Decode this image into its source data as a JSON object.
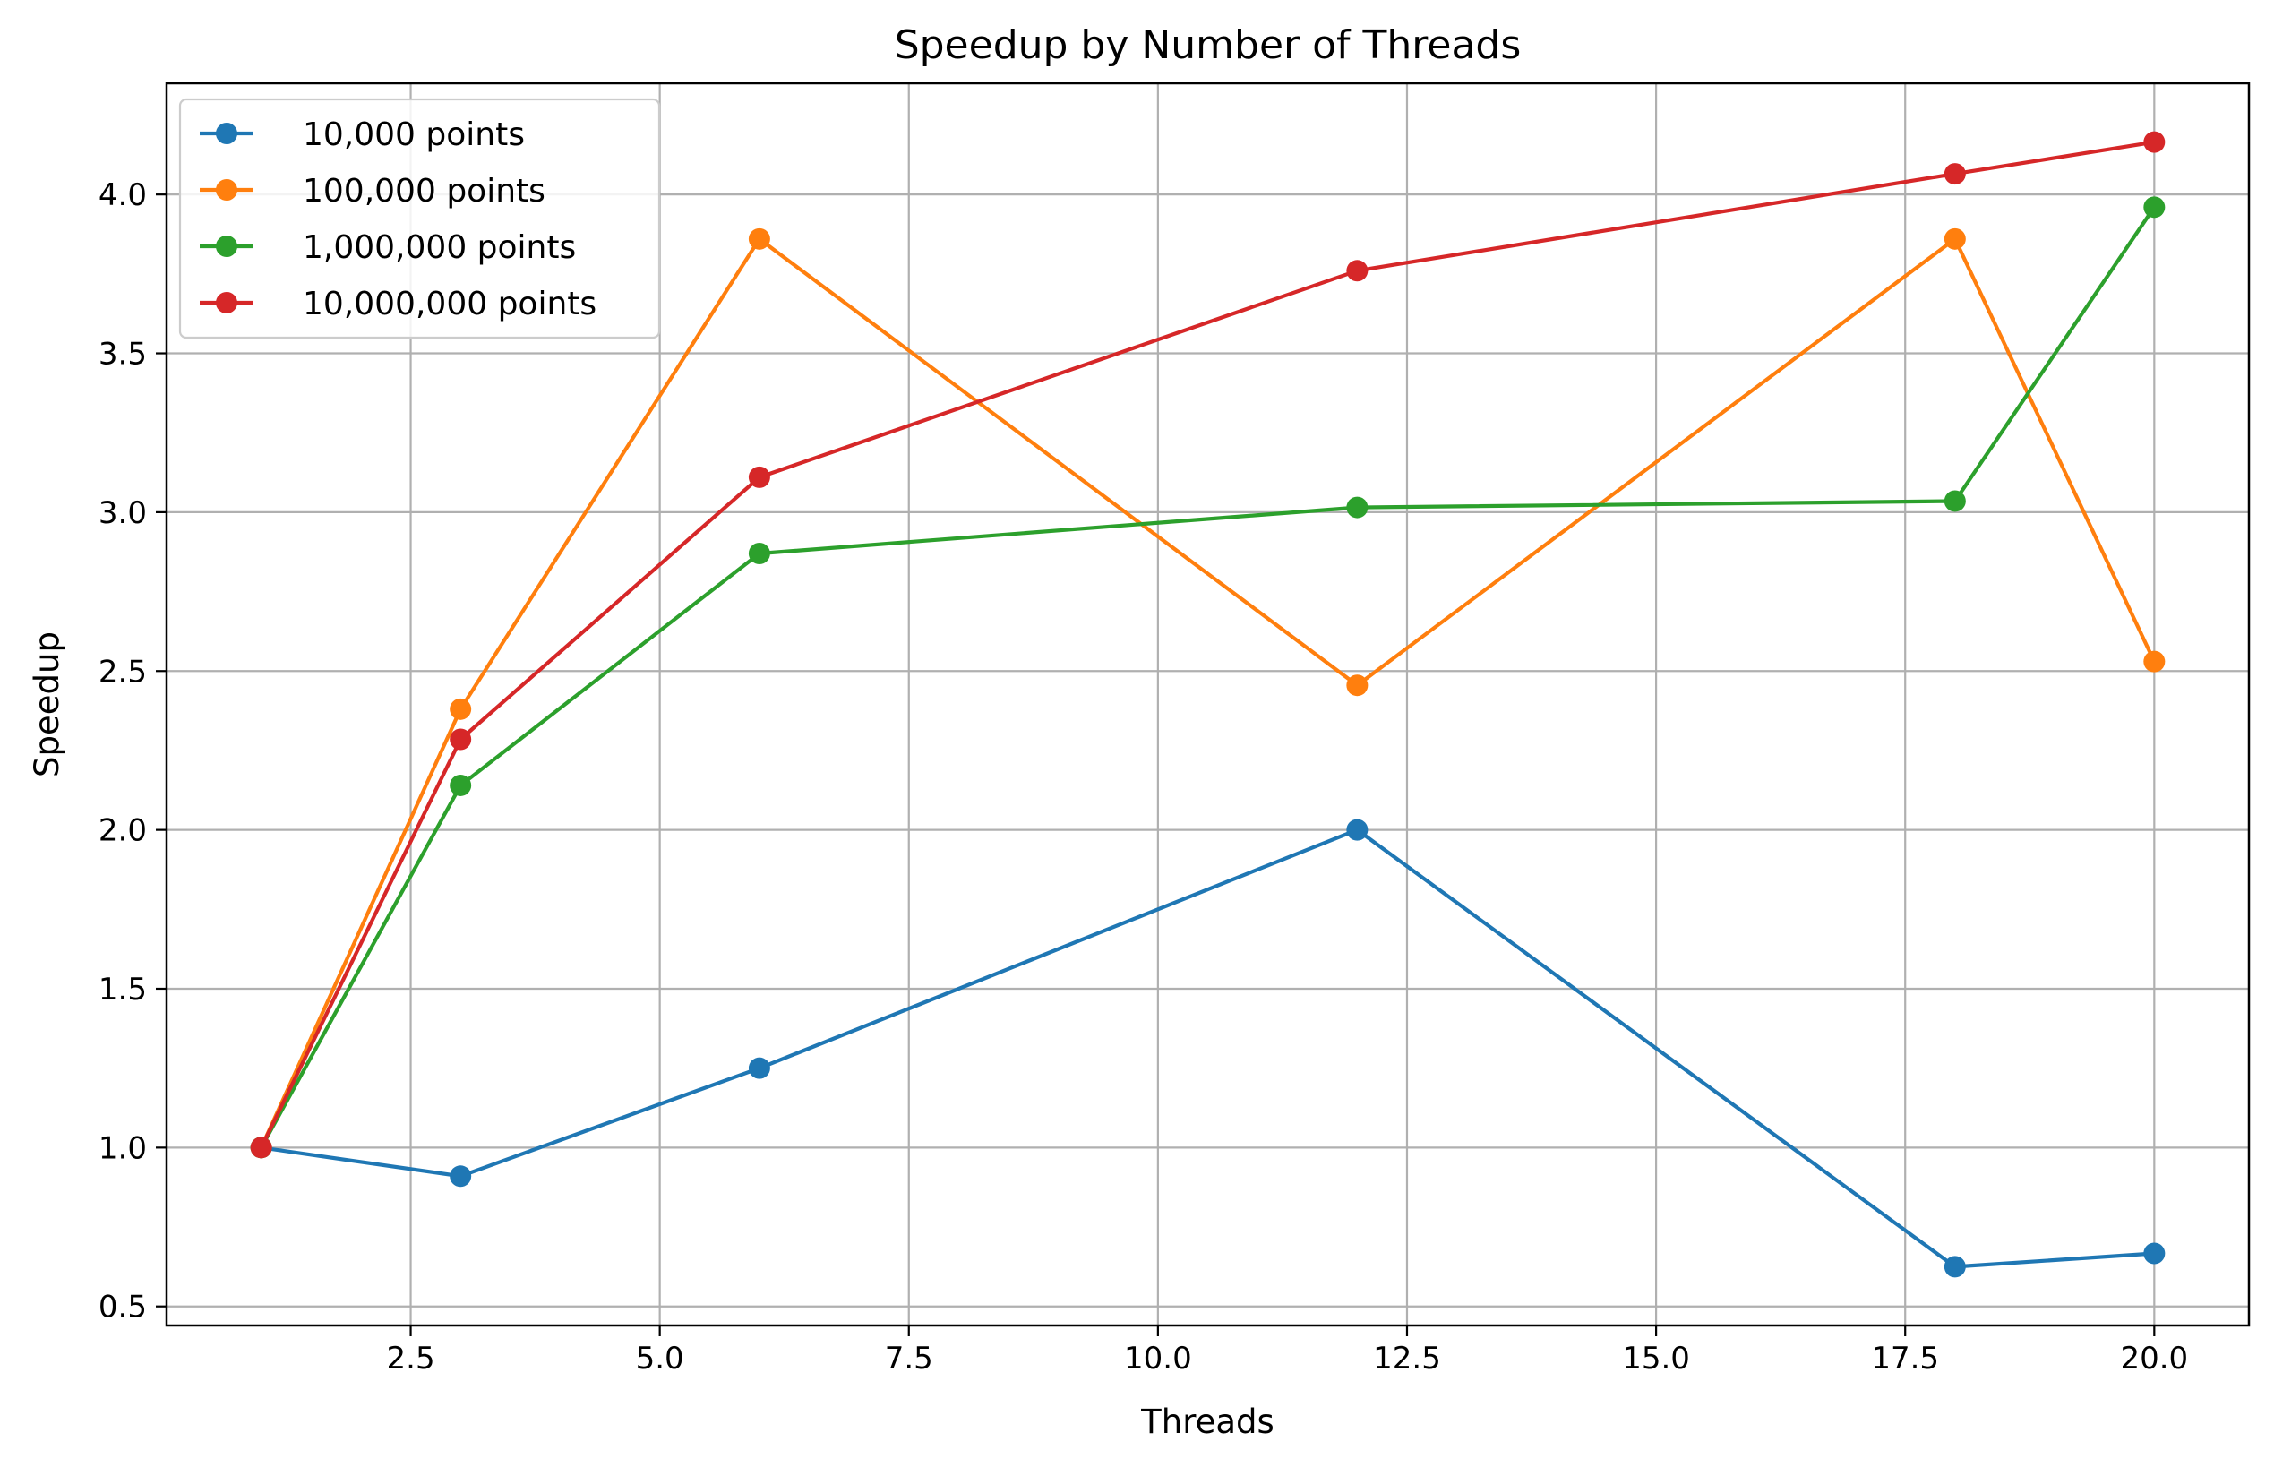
{
  "chart_data": {
    "type": "line",
    "title": "Speedup by Number of Threads",
    "xlabel": "Threads",
    "ylabel": "Speedup",
    "x": [
      1,
      3,
      6,
      12,
      18,
      20
    ],
    "xlim": [
      0.05,
      20.95
    ],
    "ylim": [
      0.44,
      4.35
    ],
    "xticks": [
      2.5,
      5.0,
      7.5,
      10.0,
      12.5,
      15.0,
      17.5,
      20.0
    ],
    "xtick_labels": [
      "2.5",
      "5.0",
      "7.5",
      "10.0",
      "12.5",
      "15.0",
      "17.5",
      "20.0"
    ],
    "yticks": [
      0.5,
      1.0,
      1.5,
      2.0,
      2.5,
      3.0,
      3.5,
      4.0
    ],
    "ytick_labels": [
      "0.5",
      "1.0",
      "1.5",
      "2.0",
      "2.5",
      "3.0",
      "3.5",
      "4.0"
    ],
    "grid": true,
    "legend_position": "upper-left",
    "series": [
      {
        "name": "10,000 points",
        "color": "#1f77b4",
        "marker": "circle",
        "values": [
          1.0,
          0.91,
          1.25,
          2.0,
          0.625,
          0.667
        ]
      },
      {
        "name": "100,000 points",
        "color": "#ff7f0e",
        "marker": "circle",
        "values": [
          1.0,
          2.38,
          3.86,
          2.455,
          3.86,
          2.53
        ]
      },
      {
        "name": "1,000,000 points",
        "color": "#2ca02c",
        "marker": "circle",
        "values": [
          1.0,
          2.14,
          2.87,
          3.015,
          3.035,
          3.96
        ]
      },
      {
        "name": "10,000,000 points",
        "color": "#d62728",
        "marker": "circle",
        "values": [
          1.0,
          2.285,
          3.11,
          3.76,
          4.065,
          4.165
        ]
      }
    ]
  }
}
